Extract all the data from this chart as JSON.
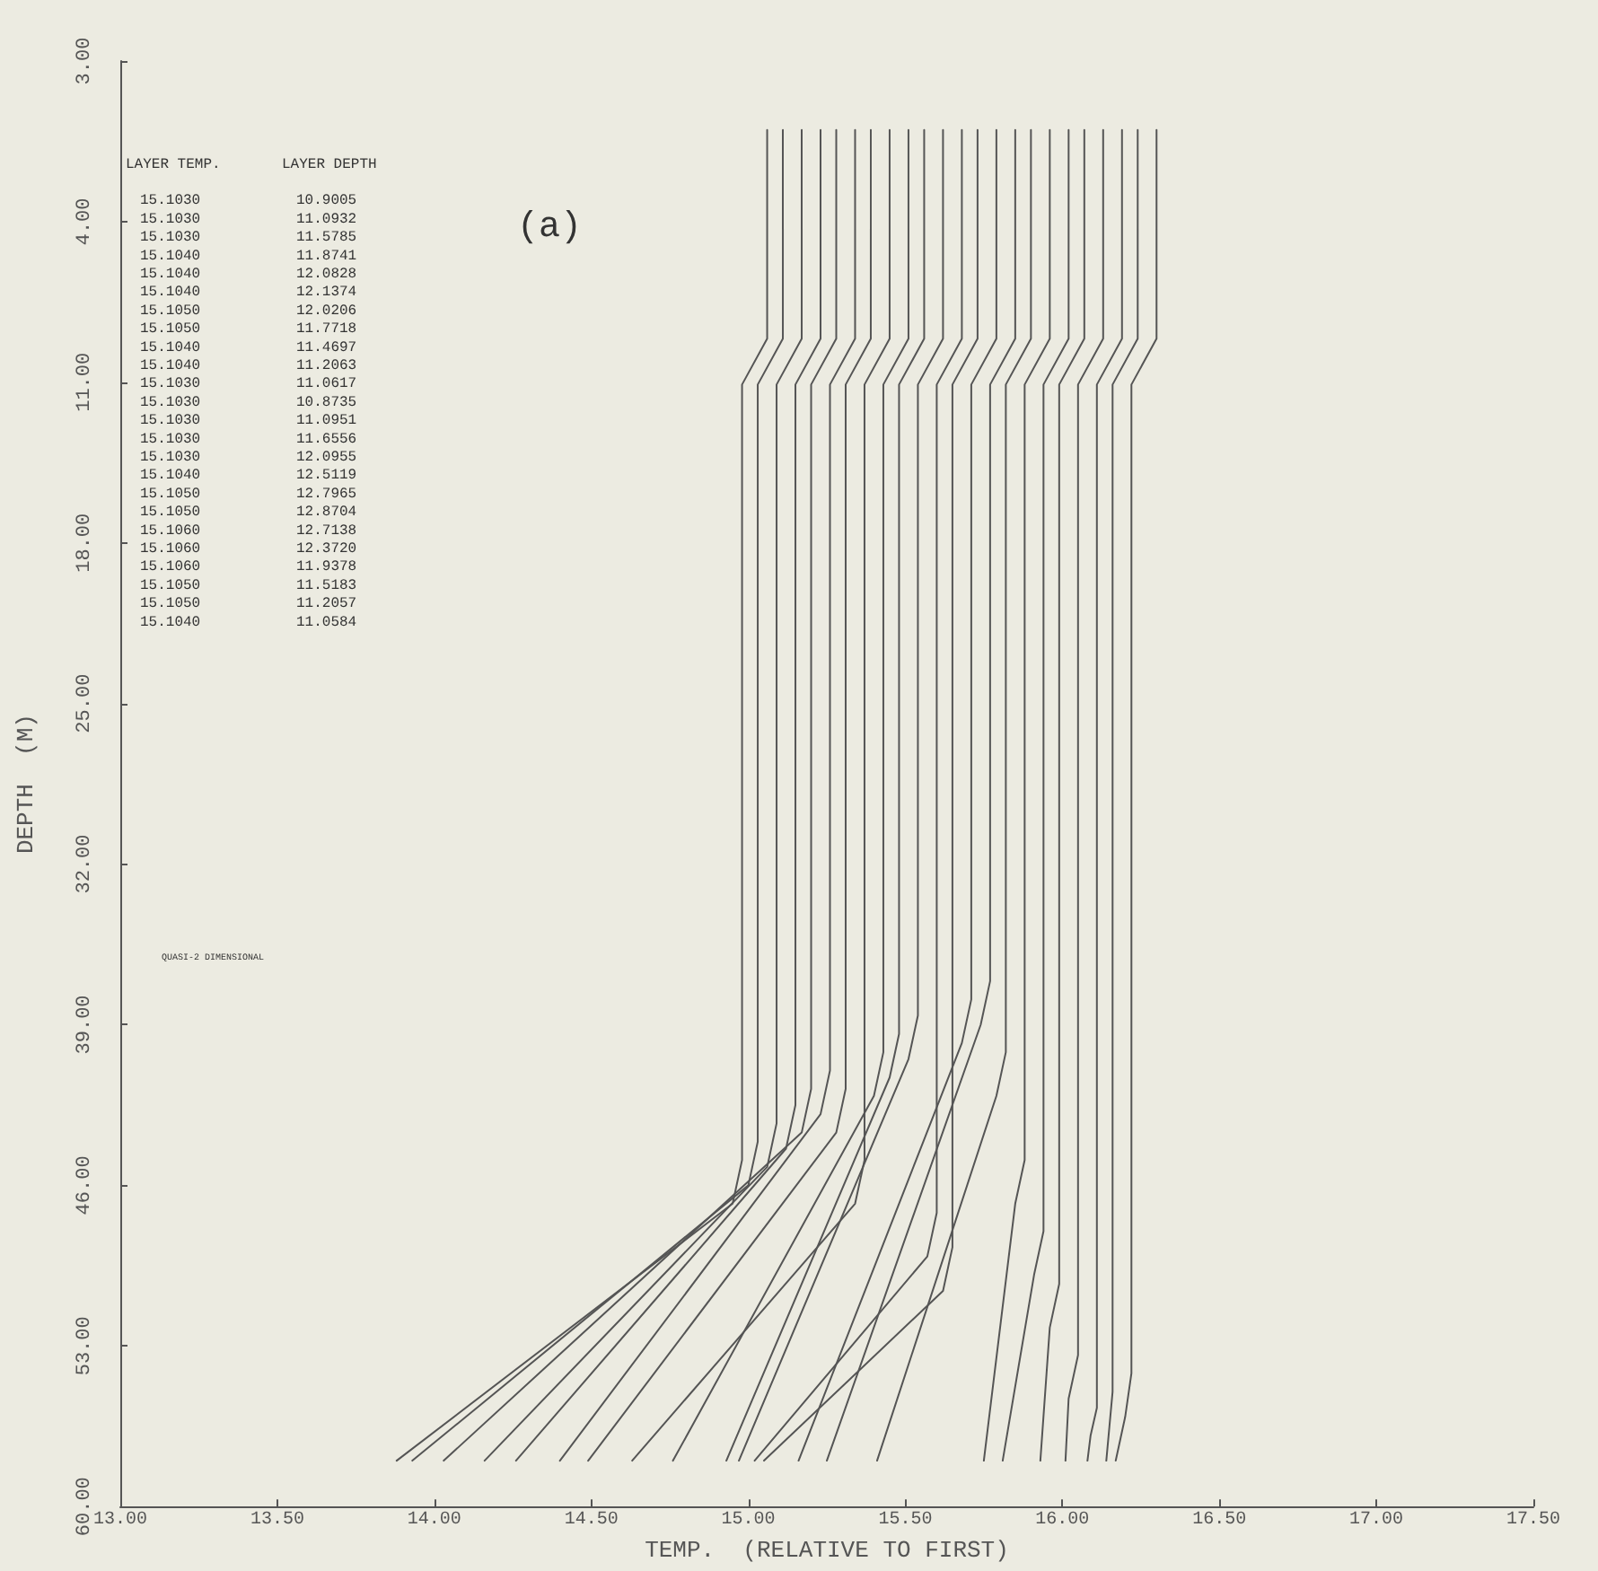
{
  "chart_data": {
    "type": "line",
    "xlabel": "TEMP.  (RELATIVE TO FIRST)",
    "ylabel": "DEPTH  (M)",
    "xlim": [
      13,
      17.5
    ],
    "xticks": [
      {
        "value": 13,
        "label": "13.00"
      },
      {
        "value": 13.5,
        "label": "13.50"
      },
      {
        "value": 14,
        "label": "14.00"
      },
      {
        "value": 14.5,
        "label": "14.50"
      },
      {
        "value": 15,
        "label": "15.00"
      },
      {
        "value": 15.5,
        "label": "15.50"
      },
      {
        "value": 16,
        "label": "16.00"
      },
      {
        "value": 16.5,
        "label": "16.50"
      },
      {
        "value": 17,
        "label": "17.00"
      },
      {
        "value": 17.5,
        "label": "17.50"
      }
    ],
    "ylim": [
      60,
      -3
    ],
    "yticks": [
      {
        "value": -3,
        "label": "3.00"
      },
      {
        "value": 4,
        "label": "4.00"
      },
      {
        "value": 11,
        "label": "11.00"
      },
      {
        "value": 18,
        "label": "18.00"
      },
      {
        "value": 25,
        "label": "25.00"
      },
      {
        "value": 32,
        "label": "32.00"
      },
      {
        "value": 39,
        "label": "39.00"
      },
      {
        "value": 46,
        "label": "46.00"
      },
      {
        "value": 53,
        "label": "53.00"
      },
      {
        "value": 60,
        "label": "60.00"
      }
    ],
    "grid": false,
    "marker": "none",
    "line_style": "solid",
    "series": [
      {
        "color": "#555555",
        "x": [
          15.06,
          15.06,
          14.98,
          14.98,
          14.95,
          13.88
        ],
        "values": [
          0,
          9.1,
          11.1,
          44.9,
          46.8,
          58
        ]
      },
      {
        "color": "#555555",
        "x": [
          15.11,
          15.11,
          15.03,
          15.03,
          15.0,
          13.93
        ],
        "values": [
          0,
          9.1,
          11.1,
          44.1,
          46.0,
          58
        ]
      },
      {
        "color": "#555555",
        "x": [
          15.17,
          15.17,
          15.09,
          15.09,
          15.06,
          14.16
        ],
        "values": [
          0,
          9.1,
          11.1,
          43.3,
          45.2,
          58
        ]
      },
      {
        "color": "#555555",
        "x": [
          15.23,
          15.23,
          15.15,
          15.15,
          15.12,
          14.26
        ],
        "values": [
          0,
          9.1,
          11.1,
          42.5,
          44.4,
          58
        ]
      },
      {
        "color": "#555555",
        "x": [
          15.28,
          15.28,
          15.2,
          15.2,
          15.17,
          14.03
        ],
        "values": [
          0,
          9.1,
          11.1,
          41.8,
          43.7,
          58
        ]
      },
      {
        "color": "#555555",
        "x": [
          15.34,
          15.34,
          15.26,
          15.26,
          15.23,
          14.4
        ],
        "values": [
          0,
          9.1,
          11.1,
          41.0,
          42.9,
          58
        ]
      },
      {
        "color": "#555555",
        "x": [
          15.39,
          15.39,
          15.31,
          15.31,
          15.28,
          14.49
        ],
        "values": [
          0,
          9.1,
          11.1,
          41.8,
          43.7,
          58
        ]
      },
      {
        "color": "#555555",
        "x": [
          15.45,
          15.45,
          15.37,
          15.37,
          15.34,
          14.63
        ],
        "values": [
          0,
          9.1,
          11.1,
          44.9,
          46.8,
          58
        ]
      },
      {
        "color": "#555555",
        "x": [
          15.51,
          15.51,
          15.43,
          15.43,
          15.4,
          14.76
        ],
        "values": [
          0,
          9.1,
          11.1,
          40.2,
          42.1,
          58
        ]
      },
      {
        "color": "#555555",
        "x": [
          15.56,
          15.56,
          15.48,
          15.48,
          15.45,
          14.93
        ],
        "values": [
          0,
          9.1,
          11.1,
          39.4,
          41.3,
          58
        ]
      },
      {
        "color": "#555555",
        "x": [
          15.62,
          15.62,
          15.54,
          15.54,
          15.51,
          14.97
        ],
        "values": [
          0,
          9.1,
          11.1,
          38.6,
          40.5,
          58
        ]
      },
      {
        "color": "#555555",
        "x": [
          15.68,
          15.68,
          15.6,
          15.6,
          15.57,
          15.02
        ],
        "values": [
          0,
          9.1,
          11.1,
          47.2,
          49.1,
          58
        ]
      },
      {
        "color": "#555555",
        "x": [
          15.73,
          15.73,
          15.65,
          15.65,
          15.62,
          15.05
        ],
        "values": [
          0,
          9.1,
          11.1,
          48.7,
          50.6,
          58
        ]
      },
      {
        "color": "#555555",
        "x": [
          15.79,
          15.79,
          15.71,
          15.71,
          15.68,
          15.16
        ],
        "values": [
          0,
          9.1,
          11.1,
          37.9,
          39.8,
          58
        ]
      },
      {
        "color": "#555555",
        "x": [
          15.85,
          15.85,
          15.77,
          15.77,
          15.74,
          15.25
        ],
        "values": [
          0,
          9.1,
          11.1,
          37.1,
          39.0,
          58
        ]
      },
      {
        "color": "#555555",
        "x": [
          15.9,
          15.9,
          15.82,
          15.82,
          15.79,
          15.41
        ],
        "values": [
          0,
          9.1,
          11.1,
          40.2,
          42.1,
          58
        ]
      },
      {
        "color": "#555555",
        "x": [
          15.96,
          15.96,
          15.88,
          15.88,
          15.85,
          15.75
        ],
        "values": [
          0,
          9.1,
          11.1,
          44.9,
          46.8,
          58
        ]
      },
      {
        "color": "#555555",
        "x": [
          16.02,
          16.02,
          15.94,
          15.94,
          15.91,
          15.81
        ],
        "values": [
          0,
          9.1,
          11.1,
          48.0,
          49.9,
          58
        ]
      },
      {
        "color": "#555555",
        "x": [
          16.07,
          16.07,
          15.99,
          15.99,
          15.96,
          15.93
        ],
        "values": [
          0,
          9.1,
          11.1,
          50.3,
          52.2,
          58
        ]
      },
      {
        "color": "#555555",
        "x": [
          16.13,
          16.13,
          16.05,
          16.05,
          16.02,
          16.01
        ],
        "values": [
          0,
          9.1,
          11.1,
          53.4,
          55.3,
          58
        ]
      },
      {
        "color": "#555555",
        "x": [
          16.19,
          16.19,
          16.11,
          16.11,
          16.09,
          16.08
        ],
        "values": [
          0,
          9.1,
          11.1,
          55.7,
          56.9,
          58
        ]
      },
      {
        "color": "#555555",
        "x": [
          16.24,
          16.24,
          16.16,
          16.16,
          16.15,
          16.14
        ],
        "values": [
          0,
          9.1,
          11.1,
          55.0,
          56.5,
          58
        ]
      },
      {
        "color": "#555555",
        "x": [
          16.3,
          16.3,
          16.22,
          16.22,
          16.2,
          16.17
        ],
        "values": [
          0,
          9.1,
          11.1,
          54.2,
          56.1,
          58
        ]
      }
    ],
    "annotations": [
      "LAYER TEMP.",
      "LAYER DEPTH",
      "15.1030",
      "10.9005",
      "15.1030",
      "11.0932",
      "15.1030",
      "11.5785",
      "15.1040",
      "11.8741",
      "15.1040",
      "12.0828",
      "15.1040",
      "12.1374",
      "15.1050",
      "12.0206",
      "15.1050",
      "11.7718",
      "15.1040",
      "11.4697",
      "15.1040",
      "11.2063",
      "15.1030",
      "11.0617",
      "15.1030",
      "10.8735",
      "15.1030",
      "11.0951",
      "15.1030",
      "11.6556",
      "15.1030",
      "12.0955",
      "15.1040",
      "12.5119",
      "15.1050",
      "12.7965",
      "15.1050",
      "12.8704",
      "15.1060",
      "12.7138",
      "15.1060",
      "12.3720",
      "15.1060",
      "11.9378",
      "15.1050",
      "11.5183",
      "15.1050",
      "11.2057",
      "15.1040",
      "11.0584",
      "(a)",
      "QUASI-2 DIMENSIONAL"
    ]
  }
}
